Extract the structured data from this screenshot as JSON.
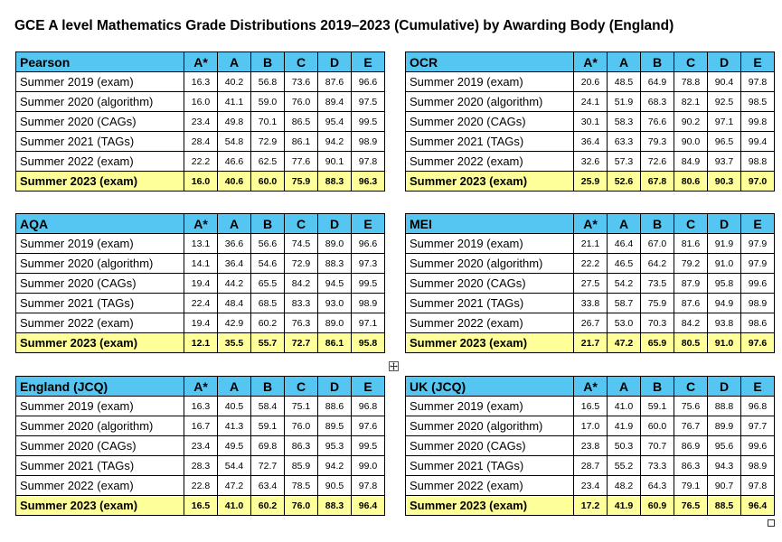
{
  "title": "GCE A level Mathematics Grade Distributions 2019–2023 (Cumulative) by Awarding Body (England)",
  "grade_headers": [
    "A*",
    "A",
    "B",
    "C",
    "D",
    "E"
  ],
  "tables": [
    {
      "name": "Pearson",
      "rows": [
        {
          "label": "Summer 2019 (exam)",
          "values": [
            "16.3",
            "40.2",
            "56.8",
            "73.6",
            "87.6",
            "96.6"
          ]
        },
        {
          "label": "Summer 2020 (algorithm)",
          "values": [
            "16.0",
            "41.1",
            "59.0",
            "76.0",
            "89.4",
            "97.5"
          ]
        },
        {
          "label": "Summer 2020 (CAGs)",
          "values": [
            "23.4",
            "49.8",
            "70.1",
            "86.5",
            "95.4",
            "99.5"
          ]
        },
        {
          "label": "Summer 2021 (TAGs)",
          "values": [
            "28.4",
            "54.8",
            "72.9",
            "86.1",
            "94.2",
            "98.9"
          ]
        },
        {
          "label": "Summer 2022 (exam)",
          "values": [
            "22.2",
            "46.6",
            "62.5",
            "77.6",
            "90.1",
            "97.8"
          ]
        },
        {
          "label": "Summer 2023 (exam)",
          "values": [
            "16.0",
            "40.6",
            "60.0",
            "75.9",
            "88.3",
            "96.3"
          ],
          "highlight": true
        }
      ]
    },
    {
      "name": "OCR",
      "rows": [
        {
          "label": "Summer 2019 (exam)",
          "values": [
            "20.6",
            "48.5",
            "64.9",
            "78.8",
            "90.4",
            "97.8"
          ]
        },
        {
          "label": "Summer 2020 (algorithm)",
          "values": [
            "24.1",
            "51.9",
            "68.3",
            "82.1",
            "92.5",
            "98.5"
          ]
        },
        {
          "label": "Summer 2020 (CAGs)",
          "values": [
            "30.1",
            "58.3",
            "76.6",
            "90.2",
            "97.1",
            "99.8"
          ]
        },
        {
          "label": "Summer 2021 (TAGs)",
          "values": [
            "36.4",
            "63.3",
            "79.3",
            "90.0",
            "96.5",
            "99.4"
          ]
        },
        {
          "label": "Summer 2022 (exam)",
          "values": [
            "32.6",
            "57.3",
            "72.6",
            "84.9",
            "93.7",
            "98.8"
          ]
        },
        {
          "label": "Summer 2023 (exam)",
          "values": [
            "25.9",
            "52.6",
            "67.8",
            "80.6",
            "90.3",
            "97.0"
          ],
          "highlight": true
        }
      ]
    },
    {
      "name": "AQA",
      "rows": [
        {
          "label": "Summer 2019 (exam)",
          "values": [
            "13.1",
            "36.6",
            "56.6",
            "74.5",
            "89.0",
            "96.6"
          ]
        },
        {
          "label": "Summer 2020 (algorithm)",
          "values": [
            "14.1",
            "36.4",
            "54.6",
            "72.9",
            "88.3",
            "97.3"
          ]
        },
        {
          "label": "Summer 2020 (CAGs)",
          "values": [
            "19.4",
            "44.2",
            "65.5",
            "84.2",
            "94.5",
            "99.5"
          ]
        },
        {
          "label": "Summer 2021 (TAGs)",
          "values": [
            "22.4",
            "48.4",
            "68.5",
            "83.3",
            "93.0",
            "98.9"
          ]
        },
        {
          "label": "Summer 2022 (exam)",
          "values": [
            "19.4",
            "42.9",
            "60.2",
            "76.3",
            "89.0",
            "97.1"
          ]
        },
        {
          "label": "Summer 2023 (exam)",
          "values": [
            "12.1",
            "35.5",
            "55.7",
            "72.7",
            "86.1",
            "95.8"
          ],
          "highlight": true
        }
      ]
    },
    {
      "name": "MEI",
      "rows": [
        {
          "label": "Summer 2019 (exam)",
          "values": [
            "21.1",
            "46.4",
            "67.0",
            "81.6",
            "91.9",
            "97.9"
          ]
        },
        {
          "label": "Summer 2020 (algorithm)",
          "values": [
            "22.2",
            "46.5",
            "64.2",
            "79.2",
            "91.0",
            "97.9"
          ]
        },
        {
          "label": "Summer 2020 (CAGs)",
          "values": [
            "27.5",
            "54.2",
            "73.5",
            "87.9",
            "95.8",
            "99.6"
          ]
        },
        {
          "label": "Summer 2021 (TAGs)",
          "values": [
            "33.8",
            "58.7",
            "75.9",
            "87.6",
            "94.9",
            "98.9"
          ]
        },
        {
          "label": "Summer 2022 (exam)",
          "values": [
            "26.7",
            "53.0",
            "70.3",
            "84.2",
            "93.8",
            "98.6"
          ]
        },
        {
          "label": "Summer 2023 (exam)",
          "values": [
            "21.7",
            "47.2",
            "65.9",
            "80.5",
            "91.0",
            "97.6"
          ],
          "highlight": true
        }
      ]
    },
    {
      "name": "England (JCQ)",
      "rows": [
        {
          "label": "Summer 2019 (exam)",
          "values": [
            "16.3",
            "40.5",
            "58.4",
            "75.1",
            "88.6",
            "96.8"
          ]
        },
        {
          "label": "Summer 2020 (algorithm)",
          "values": [
            "16.7",
            "41.3",
            "59.1",
            "76.0",
            "89.5",
            "97.6"
          ]
        },
        {
          "label": "Summer 2020 (CAGs)",
          "values": [
            "23.4",
            "49.5",
            "69.8",
            "86.3",
            "95.3",
            "99.5"
          ]
        },
        {
          "label": "Summer 2021 (TAGs)",
          "values": [
            "28.3",
            "54.4",
            "72.7",
            "85.9",
            "94.2",
            "99.0"
          ]
        },
        {
          "label": "Summer 2022 (exam)",
          "values": [
            "22.8",
            "47.2",
            "63.4",
            "78.5",
            "90.5",
            "97.8"
          ]
        },
        {
          "label": "Summer 2023 (exam)",
          "values": [
            "16.5",
            "41.0",
            "60.2",
            "76.0",
            "88.3",
            "96.4"
          ],
          "highlight": true
        }
      ]
    },
    {
      "name": "UK (JCQ)",
      "rows": [
        {
          "label": "Summer 2019 (exam)",
          "values": [
            "16.5",
            "41.0",
            "59.1",
            "75.6",
            "88.8",
            "96.8"
          ]
        },
        {
          "label": "Summer 2020 (algorithm)",
          "values": [
            "17.0",
            "41.9",
            "60.0",
            "76.7",
            "89.9",
            "97.7"
          ]
        },
        {
          "label": "Summer 2020 (CAGs)",
          "values": [
            "23.8",
            "50.3",
            "70.7",
            "86.9",
            "95.6",
            "99.6"
          ]
        },
        {
          "label": "Summer 2021 (TAGs)",
          "values": [
            "28.7",
            "55.2",
            "73.3",
            "86.3",
            "94.3",
            "98.9"
          ]
        },
        {
          "label": "Summer 2022 (exam)",
          "values": [
            "23.4",
            "48.2",
            "64.3",
            "79.1",
            "90.7",
            "97.8"
          ]
        },
        {
          "label": "Summer 2023 (exam)",
          "values": [
            "17.2",
            "41.9",
            "60.9",
            "76.5",
            "88.5",
            "96.4"
          ],
          "highlight": true
        }
      ]
    }
  ],
  "colors": {
    "header_bg": "#55c6f2",
    "highlight_bg": "#ffff99",
    "border": "#000000"
  },
  "icons": {
    "table_move_handle": "four-arrow-move-icon",
    "table_resize_handle": "resize-square-icon"
  }
}
